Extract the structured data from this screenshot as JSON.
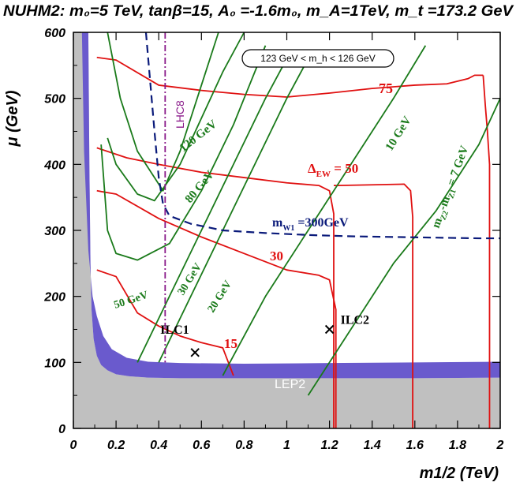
{
  "chart_data": {
    "type": "line",
    "title": "NUHM2: m₀=5 TeV, tanβ=15, A₀ =-1.6m₀, m_A=1TeV, m_t =173.2 GeV",
    "xlabel": "m1/2 (TeV)",
    "ylabel": "μ (GeV)",
    "xlim": [
      0,
      2
    ],
    "ylim": [
      0,
      600
    ],
    "xticks": [
      "0",
      "0.2",
      "0.4",
      "0.6",
      "0.8",
      "1",
      "1.2",
      "1.4",
      "1.6",
      "1.8",
      "2"
    ],
    "yticks": [
      "0",
      "100",
      "200",
      "300",
      "400",
      "500",
      "600"
    ],
    "box_label": "123 GeV < m_h < 126 GeV",
    "colors": {
      "delta_ew": "#e01010",
      "mass_gap": "#1a7a1a",
      "mw1": "#0a1a7a",
      "lhc8": "#8a1a8a",
      "lep2": "#6a5acd",
      "excluded": "#c0c0c0"
    },
    "regions": [
      {
        "name": "LEP2",
        "label": "LEP2",
        "outer": [
          [
            0.04,
            600
          ],
          [
            0.05,
            420
          ],
          [
            0.07,
            270
          ],
          [
            0.09,
            200
          ],
          [
            0.11,
            170
          ],
          [
            0.14,
            140
          ],
          [
            0.18,
            120
          ],
          [
            0.25,
            107
          ],
          [
            0.35,
            101
          ],
          [
            0.5,
            99
          ],
          [
            0.8,
            98
          ],
          [
            1.2,
            99
          ],
          [
            1.6,
            100
          ],
          [
            2,
            101
          ]
        ],
        "inner": [
          [
            2,
            77
          ],
          [
            1.6,
            76
          ],
          [
            1.2,
            76
          ],
          [
            0.8,
            76
          ],
          [
            0.5,
            76
          ],
          [
            0.35,
            77
          ],
          [
            0.26,
            79
          ],
          [
            0.2,
            82
          ],
          [
            0.16,
            88
          ],
          [
            0.13,
            96
          ],
          [
            0.11,
            110
          ],
          [
            0.095,
            135
          ],
          [
            0.085,
            180
          ],
          [
            0.08,
            250
          ],
          [
            0.075,
            400
          ],
          [
            0.07,
            600
          ]
        ]
      },
      {
        "name": "excluded-gray",
        "outer_ref": "LEP2.inner"
      }
    ],
    "series": [
      {
        "name": "ΔEW = 75",
        "group": "delta_ew",
        "x": [
          0.11,
          0.2,
          0.4,
          0.6,
          0.8,
          1.0,
          1.2,
          1.4,
          1.6,
          1.75,
          1.85,
          1.88,
          1.92
        ],
        "y": [
          562,
          558,
          520,
          512,
          506,
          502,
          508,
          515,
          520,
          522,
          530,
          535,
          535
        ]
      },
      {
        "name": "75 right edge",
        "group": "delta_ew",
        "x": [
          1.92,
          1.93,
          1.94,
          1.95,
          1.95
        ],
        "y": [
          535,
          490,
          450,
          400,
          0
        ]
      },
      {
        "name": "ΔEW = 50",
        "group": "delta_ew",
        "x": [
          0.11,
          0.25,
          0.4,
          0.6,
          0.8,
          1.0,
          1.15,
          1.2,
          1.22,
          1.22
        ],
        "y": [
          425,
          410,
          400,
          388,
          380,
          372,
          368,
          360,
          325,
          0
        ]
      },
      {
        "name": "50 right part",
        "group": "delta_ew",
        "x": [
          1.22,
          1.24,
          1.55,
          1.58,
          1.59,
          1.59
        ],
        "y": [
          368,
          368,
          370,
          360,
          320,
          0
        ]
      },
      {
        "name": "ΔEW = 30",
        "group": "delta_ew",
        "x": [
          0.11,
          0.2,
          0.4,
          0.6,
          0.8,
          1.0,
          1.15,
          1.2,
          1.23,
          1.23
        ],
        "y": [
          360,
          355,
          318,
          290,
          265,
          240,
          232,
          225,
          180,
          0
        ]
      },
      {
        "name": "ΔEW = 15",
        "group": "delta_ew",
        "x": [
          0.11,
          0.2,
          0.3,
          0.4,
          0.5,
          0.6,
          0.7,
          0.75
        ],
        "y": [
          240,
          230,
          175,
          155,
          140,
          130,
          122,
          80
        ]
      },
      {
        "name": "120 GeV",
        "group": "mass_gap",
        "x": [
          0.16,
          0.22,
          0.3,
          0.42,
          0.5,
          0.6,
          0.68
        ],
        "y": [
          600,
          500,
          420,
          360,
          420,
          520,
          600
        ]
      },
      {
        "name": "80 GeV",
        "group": "mass_gap",
        "x": [
          0.16,
          0.2,
          0.3,
          0.38,
          0.5,
          0.6,
          0.7,
          0.8
        ],
        "y": [
          440,
          400,
          355,
          345,
          400,
          470,
          540,
          600
        ]
      },
      {
        "name": "50 GeV",
        "group": "mass_gap",
        "x": [
          0.13,
          0.16,
          0.2,
          0.3,
          0.45,
          0.6,
          0.75,
          0.9
        ],
        "y": [
          430,
          300,
          265,
          255,
          280,
          360,
          460,
          580
        ]
      },
      {
        "name": "30 GeV",
        "group": "mass_gap",
        "x": [
          0.3,
          0.45,
          0.6,
          0.75,
          0.9,
          1.0
        ],
        "y": [
          100,
          200,
          300,
          400,
          500,
          560
        ]
      },
      {
        "name": "20 GeV",
        "group": "mass_gap",
        "x": [
          0.4,
          0.55,
          0.7,
          0.85,
          1.0,
          1.1
        ],
        "y": [
          100,
          200,
          300,
          400,
          500,
          560
        ]
      },
      {
        "name": "10 GeV",
        "group": "mass_gap",
        "x": [
          0.7,
          0.9,
          1.1,
          1.3,
          1.5,
          1.65
        ],
        "y": [
          80,
          200,
          300,
          400,
          500,
          580
        ]
      },
      {
        "name": "m_Z2-m_Z1 = 7 GeV",
        "group": "mass_gap",
        "x": [
          1.1,
          1.3,
          1.5,
          1.7,
          1.9,
          2.0
        ],
        "y": [
          50,
          150,
          250,
          330,
          430,
          500
        ]
      },
      {
        "name": "m_W1 = 300GeV",
        "group": "mw1",
        "dashed": true,
        "x": [
          0.34,
          0.38,
          0.4,
          0.42,
          0.45,
          0.55,
          0.7,
          0.9,
          1.1,
          1.3,
          1.5,
          1.7,
          1.9,
          2.0
        ],
        "y": [
          600,
          450,
          380,
          340,
          322,
          310,
          300,
          296,
          293,
          291,
          290,
          289,
          288,
          288
        ]
      },
      {
        "name": "LHC8",
        "group": "lhc8",
        "dashdot": true,
        "x": [
          0.43,
          0.43
        ],
        "y": [
          600,
          100
        ]
      }
    ],
    "points": [
      {
        "name": "ILC1",
        "x": 0.57,
        "y": 115,
        "label": "ILC1"
      },
      {
        "name": "ILC2",
        "x": 1.2,
        "y": 150,
        "label": "ILC2"
      }
    ],
    "annotations": {
      "d75": "75",
      "d50": "50",
      "d30": "30",
      "d15": "15",
      "delta_ew_label": "Δ",
      "delta_ew_sub": "EW",
      "delta_ew_eq": " = 50",
      "g120": "120 GeV",
      "g80": "80 GeV",
      "g50": "50 GeV",
      "g30": "30 GeV",
      "g20": "20 GeV",
      "g10": "10 GeV",
      "mz_label": "m",
      "mz_mid": "-m",
      "mz_end": " = 7 GeV",
      "mw_label": "m",
      "mw_end": " =300GeV",
      "lhc8": "LHC8",
      "lep2": "LEP2"
    }
  }
}
